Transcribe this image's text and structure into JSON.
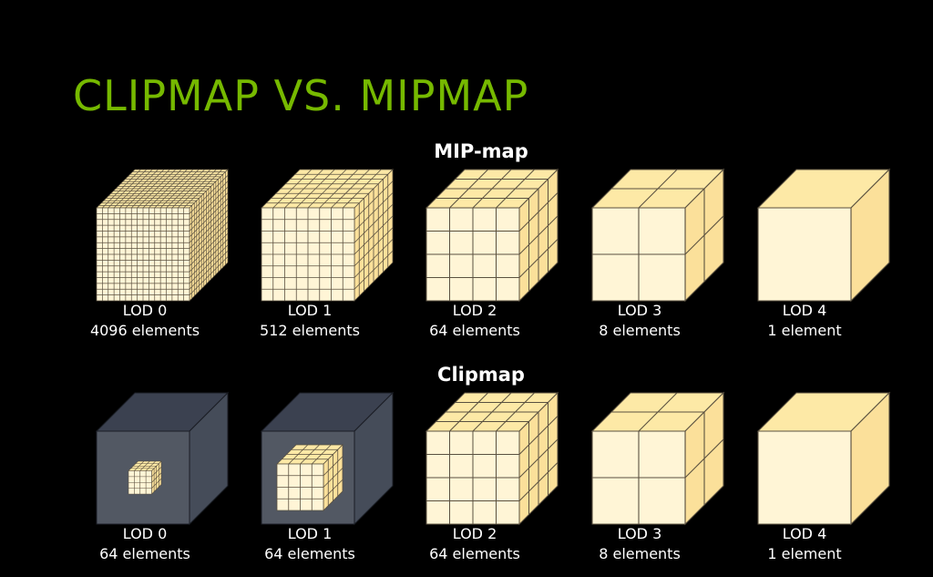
{
  "title": "CLIPMAP VS. MIPMAP",
  "colors": {
    "title": "#76b900",
    "cube_front": "#fff5d6",
    "cube_top": "#fde9a6",
    "cube_side": "#fbe09a",
    "grid_line": "#5a5140",
    "dark_front": "#525863",
    "dark_top": "#3b4150",
    "dark_side": "#454c59"
  },
  "sections": [
    {
      "title": "MIP-map",
      "items": [
        {
          "lod": "LOD 0",
          "count": "4096 elements",
          "grid": 16
        },
        {
          "lod": "LOD 1",
          "count": "512 elements",
          "grid": 8
        },
        {
          "lod": "LOD 2",
          "count": "64 elements",
          "grid": 4
        },
        {
          "lod": "LOD 3",
          "count": "8 elements",
          "grid": 2
        },
        {
          "lod": "LOD 4",
          "count": "1 element",
          "grid": 1
        }
      ]
    },
    {
      "title": "Clipmap",
      "items": [
        {
          "lod": "LOD 0",
          "count": "64 elements",
          "grid": 4,
          "clipped": true,
          "scale": 0.25
        },
        {
          "lod": "LOD 1",
          "count": "64 elements",
          "grid": 4,
          "clipped": true,
          "scale": 0.5
        },
        {
          "lod": "LOD 2",
          "count": "64 elements",
          "grid": 4
        },
        {
          "lod": "LOD 3",
          "count": "8 elements",
          "grid": 2
        },
        {
          "lod": "LOD 4",
          "count": "1 element",
          "grid": 1
        }
      ]
    }
  ]
}
